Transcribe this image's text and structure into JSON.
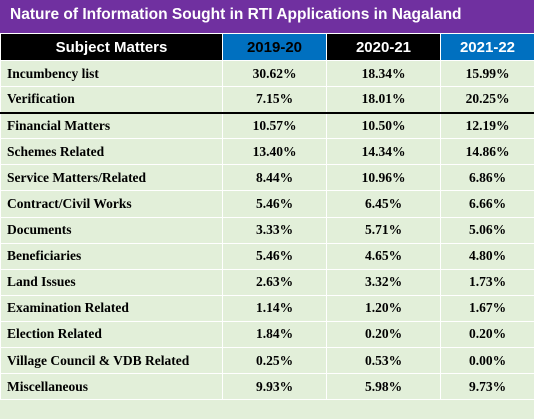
{
  "chart_data": {
    "type": "table",
    "title": "Nature of Information Sought in RTI Applications in Nagaland",
    "header_label": "Subject Matters",
    "columns": [
      "2019-20",
      "2020-21",
      "2021-22"
    ],
    "rows": [
      {
        "label": "Incumbency list",
        "values": [
          "30.62%",
          "18.34%",
          "15.99%"
        ]
      },
      {
        "label": "Verification",
        "values": [
          "7.15%",
          "18.01%",
          "20.25%"
        ]
      },
      {
        "label": "Financial Matters",
        "values": [
          "10.57%",
          "10.50%",
          "12.19%"
        ]
      },
      {
        "label": "Schemes Related",
        "values": [
          "13.40%",
          "14.34%",
          "14.86%"
        ]
      },
      {
        "label": "Service Matters/Related",
        "values": [
          "8.44%",
          "10.96%",
          "6.86%"
        ]
      },
      {
        "label": "Contract/Civil Works",
        "values": [
          "5.46%",
          "6.45%",
          "6.66%"
        ]
      },
      {
        "label": "Documents",
        "values": [
          "3.33%",
          "5.71%",
          "5.06%"
        ]
      },
      {
        "label": "Beneficiaries",
        "values": [
          "5.46%",
          "4.65%",
          "4.80%"
        ]
      },
      {
        "label": "Land Issues",
        "values": [
          "2.63%",
          "3.32%",
          "1.73%"
        ]
      },
      {
        "label": "Examination Related",
        "values": [
          "1.14%",
          "1.20%",
          "1.67%"
        ]
      },
      {
        "label": "Election Related",
        "values": [
          "1.84%",
          "0.20%",
          "0.20%"
        ]
      },
      {
        "label": "Village Council & VDB Related",
        "values": [
          "0.25%",
          "0.53%",
          "0.00%"
        ]
      },
      {
        "label": "Miscellaneous",
        "values": [
          "9.93%",
          "5.98%",
          "9.73%"
        ]
      }
    ]
  },
  "colors": {
    "title_background": "#7030a0",
    "header_blue": "#0070c0",
    "header_black": "#000000",
    "body_background": "#e2efd9"
  }
}
